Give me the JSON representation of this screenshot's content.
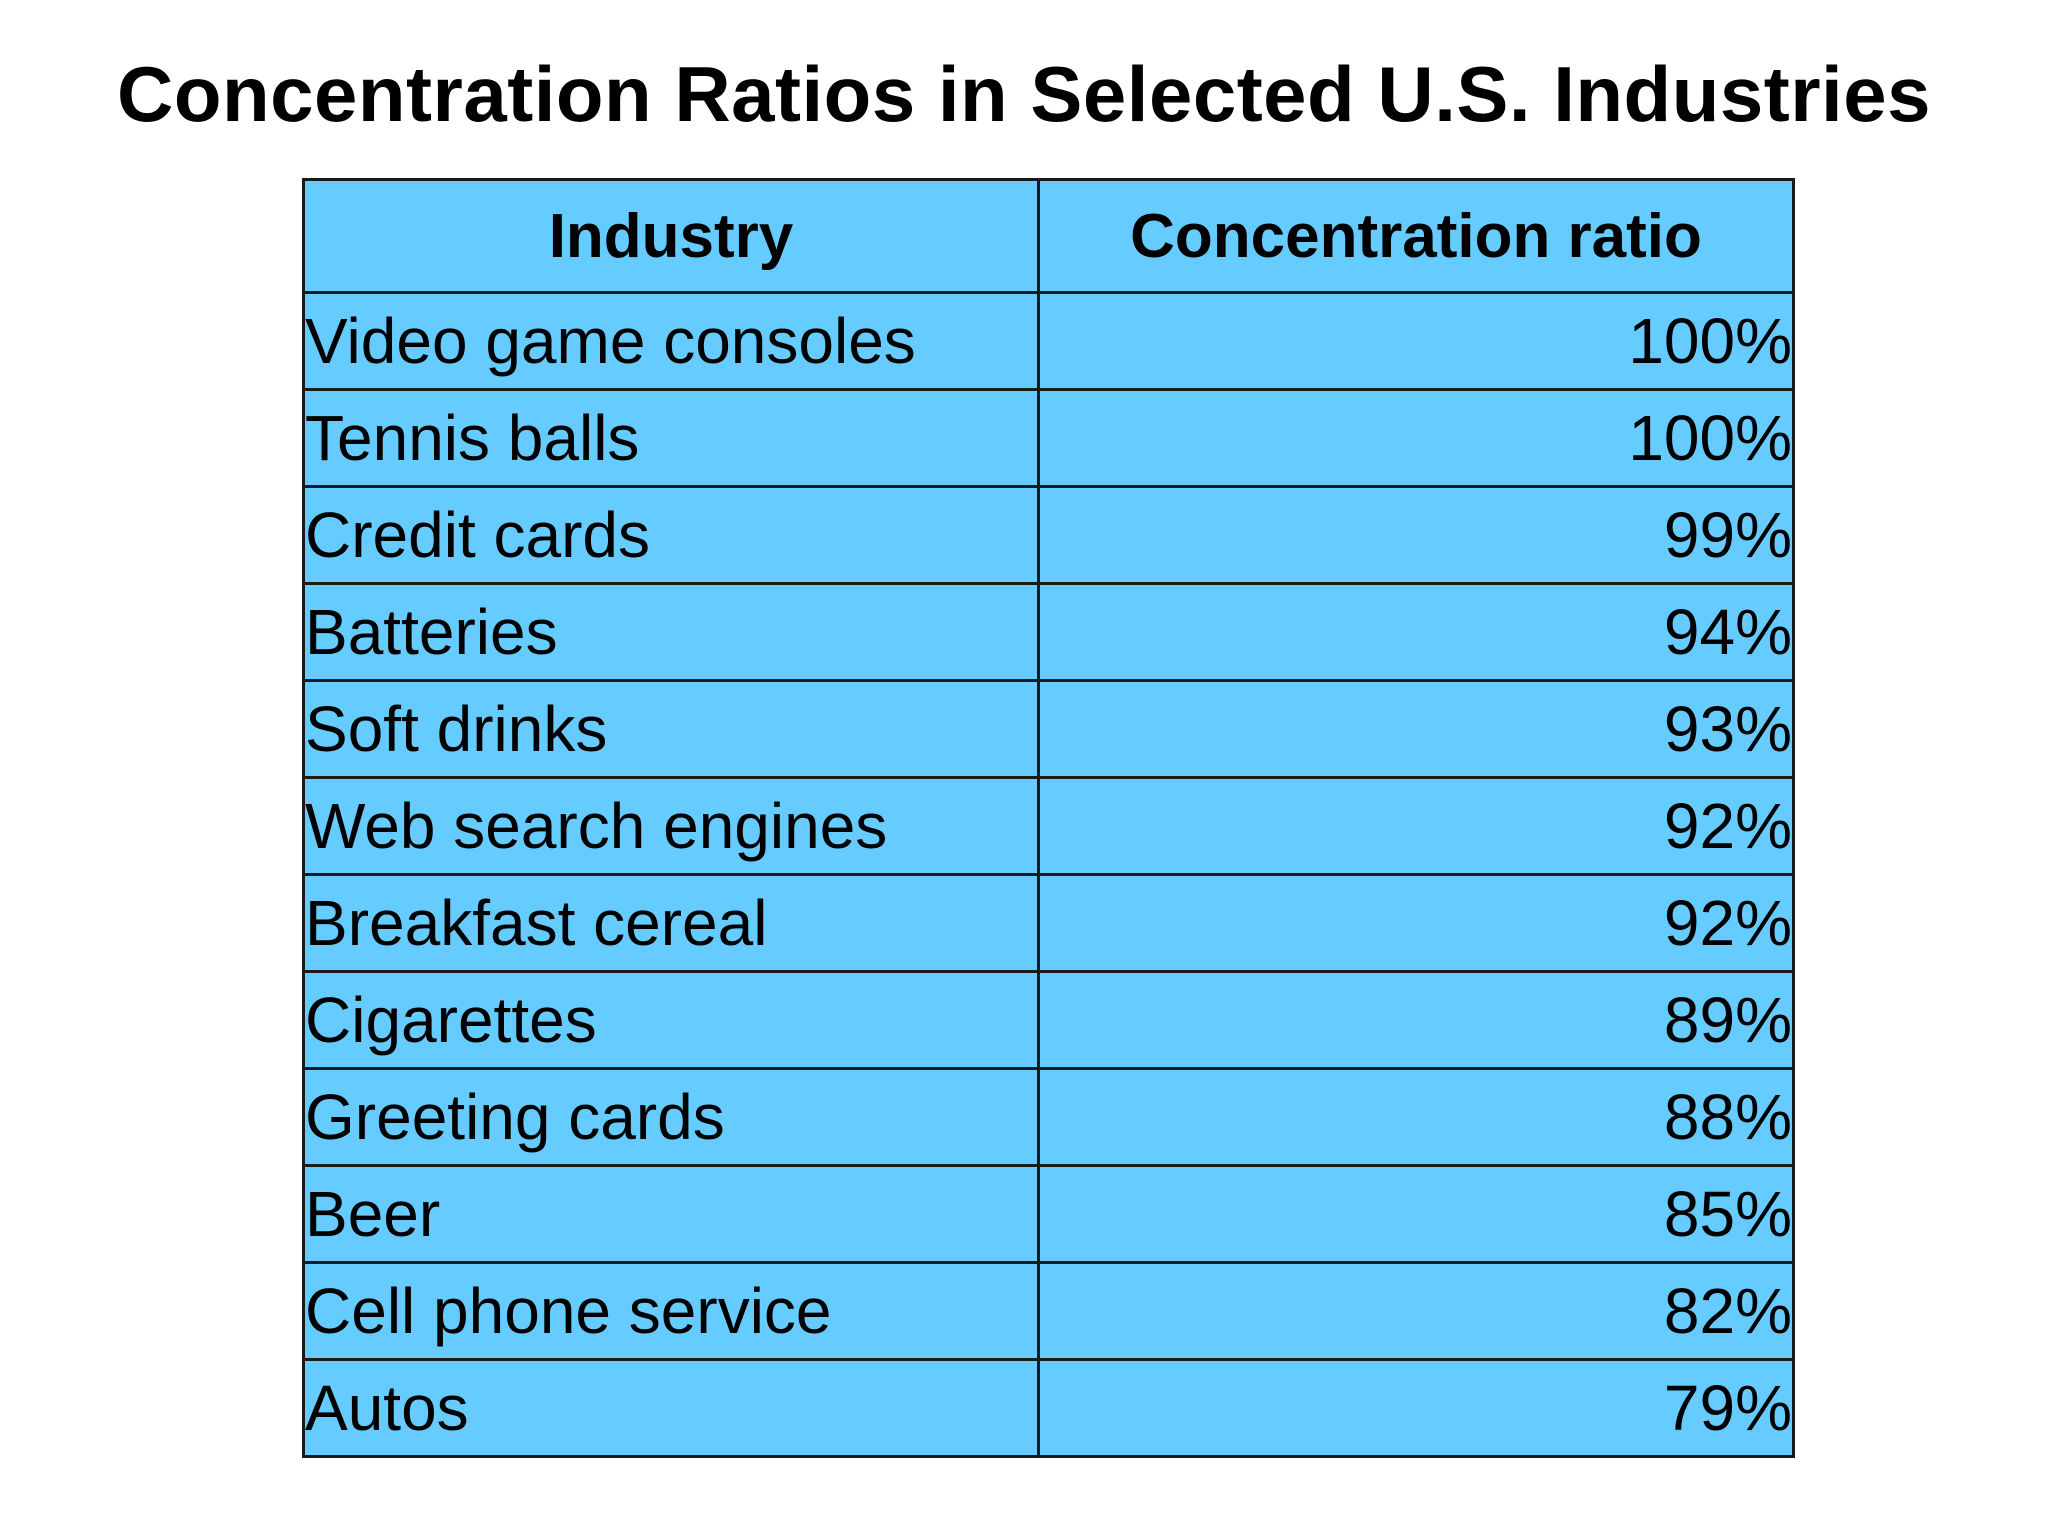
{
  "title": "Concentration Ratios in Selected U.S. Industries",
  "table": {
    "headers": [
      "Industry",
      "Concentration ratio"
    ],
    "rows": [
      {
        "industry": "Video game consoles",
        "ratio": "100%"
      },
      {
        "industry": "Tennis balls",
        "ratio": "100%"
      },
      {
        "industry": "Credit cards",
        "ratio": "99%"
      },
      {
        "industry": "Batteries",
        "ratio": "94%"
      },
      {
        "industry": "Soft drinks",
        "ratio": "93%"
      },
      {
        "industry": "Web search engines",
        "ratio": "92%"
      },
      {
        "industry": "Breakfast cereal",
        "ratio": "92%"
      },
      {
        "industry": "Cigarettes",
        "ratio": "89%"
      },
      {
        "industry": "Greeting cards",
        "ratio": "88%"
      },
      {
        "industry": "Beer",
        "ratio": "85%"
      },
      {
        "industry": "Cell phone service",
        "ratio": "82%"
      },
      {
        "industry": "Autos",
        "ratio": "79%"
      }
    ]
  },
  "colors": {
    "table_fill": "#66ccff",
    "border": "#1a1a1a",
    "text": "#000000",
    "background": "#ffffff"
  }
}
